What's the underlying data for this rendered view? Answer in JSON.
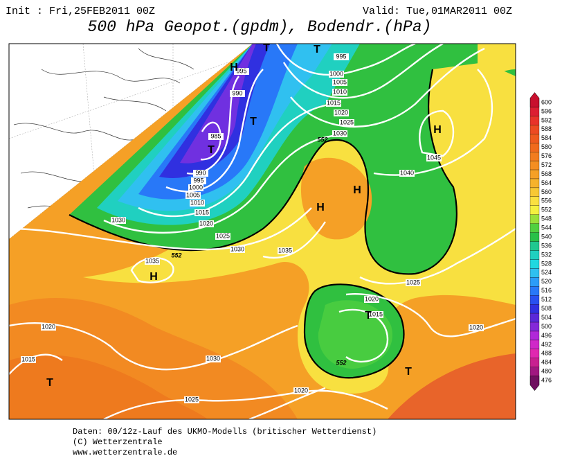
{
  "header": {
    "init": "Init : Fri,25FEB2011 00Z",
    "valid": "Valid: Tue,01MAR2011 00Z",
    "title": "500 hPa Geopot.(gpdm), Bodendr.(hPa)"
  },
  "map": {
    "isobar_labels": [
      "995",
      "990",
      "985",
      "990",
      "995",
      "1000",
      "1005",
      "1010",
      "1015",
      "1020",
      "1025",
      "1030",
      "995",
      "1000",
      "1005",
      "1010",
      "1015",
      "1020",
      "1025",
      "1030",
      "1040",
      "1045",
      "1030",
      "1035",
      "1035",
      "1025",
      "1020",
      "1015",
      "1020",
      "1020",
      "1015",
      "1030",
      "1025",
      "1020"
    ],
    "geopotential_labels": [
      "552",
      "552",
      "552"
    ],
    "centers": [
      "H",
      "T",
      "T",
      "T",
      "T",
      "H",
      "H",
      "H",
      "H",
      "T",
      "T",
      "T"
    ]
  },
  "colorbar": {
    "labels": [
      "600",
      "596",
      "592",
      "588",
      "584",
      "580",
      "576",
      "572",
      "568",
      "564",
      "560",
      "556",
      "552",
      "548",
      "544",
      "540",
      "536",
      "532",
      "528",
      "524",
      "520",
      "516",
      "512",
      "508",
      "504",
      "500",
      "496",
      "492",
      "488",
      "484",
      "480",
      "476"
    ],
    "colors": [
      "#c8102e",
      "#dc1e32",
      "#e8322a",
      "#ec4a22",
      "#ee5a1e",
      "#f06a1c",
      "#f27c1e",
      "#f48e22",
      "#f5a026",
      "#f6b22c",
      "#f8c834",
      "#fae040",
      "#f4f040",
      "#9ae03a",
      "#50d040",
      "#28c048",
      "#20c890",
      "#20d0c0",
      "#20d8e0",
      "#30c0f0",
      "#2c9cf8",
      "#2878f8",
      "#2850f0",
      "#3030e0",
      "#5a28d8",
      "#8428d8",
      "#b028d8",
      "#d028c8",
      "#e028b0",
      "#c82090",
      "#a01880",
      "#701060"
    ]
  },
  "footer": [
    "Daten: 00/12z-Lauf des UKMO-Modells (britischer Wetterdienst)",
    "(C) Wetterzentrale",
    "www.wetterzentrale.de"
  ]
}
